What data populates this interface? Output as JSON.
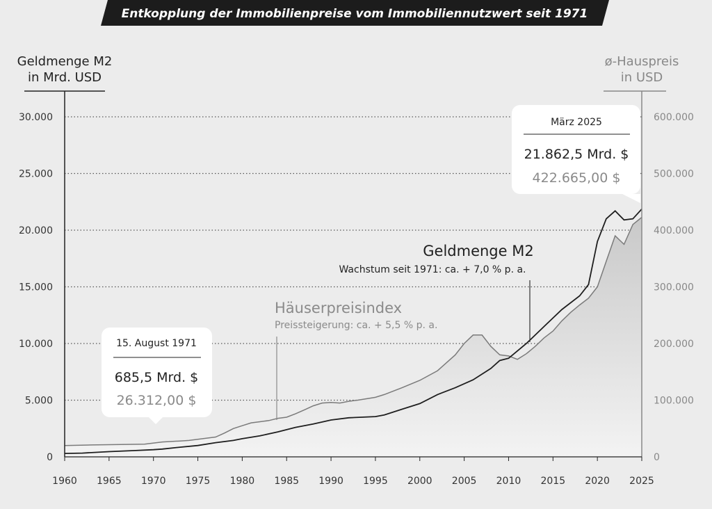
{
  "title": "Entkopplung der Immobilienpreise vom Immobiliennutzwert seit 1971",
  "colors": {
    "background": "#ececec",
    "title_bar": "#1c1c1c",
    "m2_line": "#1e1e1e",
    "hpi_line": "#7a7a7a",
    "grid": "#555555",
    "area_top": "#cfcfcf",
    "area_bottom": "#f2f2f2"
  },
  "chart_data": {
    "type": "line",
    "title": "Entkopplung der Immobilienpreise vom Immobiliennutzwert seit 1971",
    "ylabel": [
      "Geldmenge M2",
      "in Mrd. USD"
    ],
    "y2label": [
      "ø-Hauspreis",
      "in USD"
    ],
    "xlabel": "",
    "xlim": [
      1960,
      2025
    ],
    "ylim": [
      0,
      30000
    ],
    "y2lim": [
      0,
      600000
    ],
    "grid": true,
    "x_ticks": [
      "1960",
      "1965",
      "1970",
      "1975",
      "1980",
      "1985",
      "1990",
      "1995",
      "2000",
      "2005",
      "2010",
      "2015",
      "2020",
      "2025"
    ],
    "y_ticks": [
      "0",
      "5.000",
      "10.000",
      "15.000",
      "20.000",
      "25.000",
      "30.000"
    ],
    "y2_ticks": [
      "0",
      "100.000",
      "200.000",
      "300.000",
      "400.000",
      "500.000",
      "600.000"
    ],
    "series": [
      {
        "name": "Geldmenge M2",
        "subtitle": "Wachstum seit 1971: ca. + 7,0 % p. a.",
        "axis": "left",
        "points": [
          [
            1960,
            300
          ],
          [
            1962,
            330
          ],
          [
            1965,
            460
          ],
          [
            1968,
            560
          ],
          [
            1970,
            630
          ],
          [
            1971,
            685
          ],
          [
            1973,
            850
          ],
          [
            1975,
            1000
          ],
          [
            1977,
            1250
          ],
          [
            1979,
            1450
          ],
          [
            1980,
            1600
          ],
          [
            1982,
            1850
          ],
          [
            1984,
            2200
          ],
          [
            1986,
            2600
          ],
          [
            1988,
            2900
          ],
          [
            1990,
            3250
          ],
          [
            1992,
            3450
          ],
          [
            1995,
            3550
          ],
          [
            1996,
            3700
          ],
          [
            1998,
            4200
          ],
          [
            2000,
            4700
          ],
          [
            2002,
            5500
          ],
          [
            2004,
            6100
          ],
          [
            2006,
            6800
          ],
          [
            2008,
            7800
          ],
          [
            2009,
            8500
          ],
          [
            2010,
            8700
          ],
          [
            2012,
            10000
          ],
          [
            2014,
            11500
          ],
          [
            2016,
            13000
          ],
          [
            2018,
            14200
          ],
          [
            2019,
            15200
          ],
          [
            2020,
            19000
          ],
          [
            2021,
            21000
          ],
          [
            2022,
            21700
          ],
          [
            2023,
            20900
          ],
          [
            2024,
            21000
          ],
          [
            2025,
            21862.5
          ]
        ]
      },
      {
        "name": "Häuserpreisindex",
        "subtitle": "Preissteigerung: ca. + 5,5 % p. a.",
        "axis": "right",
        "points": [
          [
            1960,
            20000
          ],
          [
            1963,
            21000
          ],
          [
            1969,
            22500
          ],
          [
            1971,
            26312
          ],
          [
            1973,
            28000
          ],
          [
            1974,
            29000
          ],
          [
            1976,
            33000
          ],
          [
            1977,
            35000
          ],
          [
            1978,
            42000
          ],
          [
            1979,
            50000
          ],
          [
            1980,
            55000
          ],
          [
            1981,
            60000
          ],
          [
            1982,
            62000
          ],
          [
            1983,
            64000
          ],
          [
            1984,
            68000
          ],
          [
            1985,
            70000
          ],
          [
            1986,
            76000
          ],
          [
            1987,
            83000
          ],
          [
            1988,
            90000
          ],
          [
            1989,
            95000
          ],
          [
            1990,
            96000
          ],
          [
            1991,
            95000
          ],
          [
            1992,
            98000
          ],
          [
            1993,
            100000
          ],
          [
            1995,
            105000
          ],
          [
            1996,
            110000
          ],
          [
            1998,
            122000
          ],
          [
            2000,
            135000
          ],
          [
            2002,
            152000
          ],
          [
            2004,
            180000
          ],
          [
            2005,
            200000
          ],
          [
            2006,
            215000
          ],
          [
            2007,
            215000
          ],
          [
            2008,
            195000
          ],
          [
            2009,
            180000
          ],
          [
            2010,
            178000
          ],
          [
            2011,
            172000
          ],
          [
            2012,
            182000
          ],
          [
            2013,
            195000
          ],
          [
            2014,
            210000
          ],
          [
            2015,
            222000
          ],
          [
            2016,
            240000
          ],
          [
            2017,
            255000
          ],
          [
            2018,
            268000
          ],
          [
            2019,
            280000
          ],
          [
            2020,
            300000
          ],
          [
            2021,
            345000
          ],
          [
            2022,
            390000
          ],
          [
            2023,
            375000
          ],
          [
            2024,
            410000
          ],
          [
            2025,
            422665
          ]
        ]
      }
    ],
    "annotations": {
      "m2_label": "Geldmenge M2",
      "m2_growth": "Wachstum seit 1971: ca. + 7,0 % p. a.",
      "hpi_label": "Häuserpreisindex",
      "hpi_growth": "Preissteigerung: ca. + 5,5 % p. a.",
      "callout_1971": {
        "date": "15. August 1971",
        "m2": "685,5 Mrd. $",
        "price": "26.312,00 $"
      },
      "callout_2025": {
        "date": "März 2025",
        "m2": "21.862,5 Mrd. $",
        "price": "422.665,00 $"
      }
    }
  }
}
